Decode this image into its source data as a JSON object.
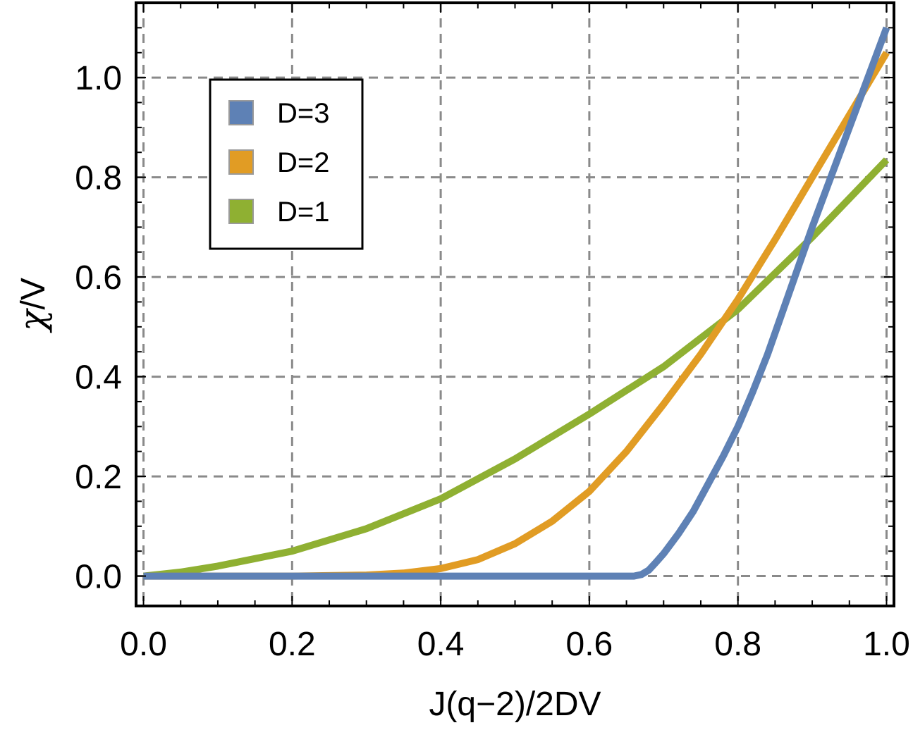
{
  "chart_data": {
    "type": "line",
    "xlabel": "J(q−2)/2DV",
    "ylabel_symbol": "χ",
    "ylabel_rest": "/V",
    "xlim": [
      -0.01,
      1.01
    ],
    "ylim": [
      -0.06,
      1.15
    ],
    "xticks": [
      0.0,
      0.2,
      0.4,
      0.6,
      0.8,
      1.0
    ],
    "yticks": [
      0.0,
      0.2,
      0.4,
      0.6,
      0.8,
      1.0
    ],
    "xtick_labels": [
      "0.0",
      "0.2",
      "0.4",
      "0.6",
      "0.8",
      "1.0"
    ],
    "ytick_labels": [
      "0.0",
      "0.2",
      "0.4",
      "0.6",
      "0.8",
      "1.0"
    ],
    "grid": true,
    "legend_position": "top-left",
    "series": [
      {
        "name": "D=3",
        "color": "#5e81b5",
        "x": [
          0.0,
          0.1,
          0.2,
          0.3,
          0.4,
          0.5,
          0.6,
          0.66,
          0.67,
          0.68,
          0.69,
          0.7,
          0.72,
          0.74,
          0.76,
          0.78,
          0.8,
          0.82,
          0.84,
          0.86,
          0.88,
          0.9,
          0.92,
          0.94,
          0.96,
          0.98,
          1.0
        ],
        "y": [
          0.0,
          0.0,
          0.0,
          0.0,
          0.0,
          0.0,
          0.0,
          0.0,
          0.003,
          0.012,
          0.028,
          0.045,
          0.085,
          0.13,
          0.185,
          0.24,
          0.3,
          0.37,
          0.445,
          0.53,
          0.615,
          0.7,
          0.78,
          0.86,
          0.94,
          1.02,
          1.1
        ]
      },
      {
        "name": "D=2",
        "color": "#e19c24",
        "x": [
          0.0,
          0.1,
          0.2,
          0.3,
          0.35,
          0.4,
          0.45,
          0.5,
          0.55,
          0.6,
          0.65,
          0.7,
          0.75,
          0.8,
          0.85,
          0.9,
          0.95,
          1.0
        ],
        "y": [
          0.0,
          0.0,
          0.0,
          0.002,
          0.006,
          0.015,
          0.033,
          0.065,
          0.11,
          0.17,
          0.25,
          0.345,
          0.445,
          0.555,
          0.675,
          0.8,
          0.925,
          1.05
        ]
      },
      {
        "name": "D=1",
        "color": "#8fb032",
        "x": [
          0.0,
          0.05,
          0.1,
          0.15,
          0.2,
          0.3,
          0.4,
          0.5,
          0.6,
          0.7,
          0.8,
          0.9,
          1.0
        ],
        "y": [
          0.0,
          0.008,
          0.02,
          0.035,
          0.05,
          0.095,
          0.155,
          0.235,
          0.325,
          0.42,
          0.535,
          0.68,
          0.835
        ]
      }
    ]
  }
}
